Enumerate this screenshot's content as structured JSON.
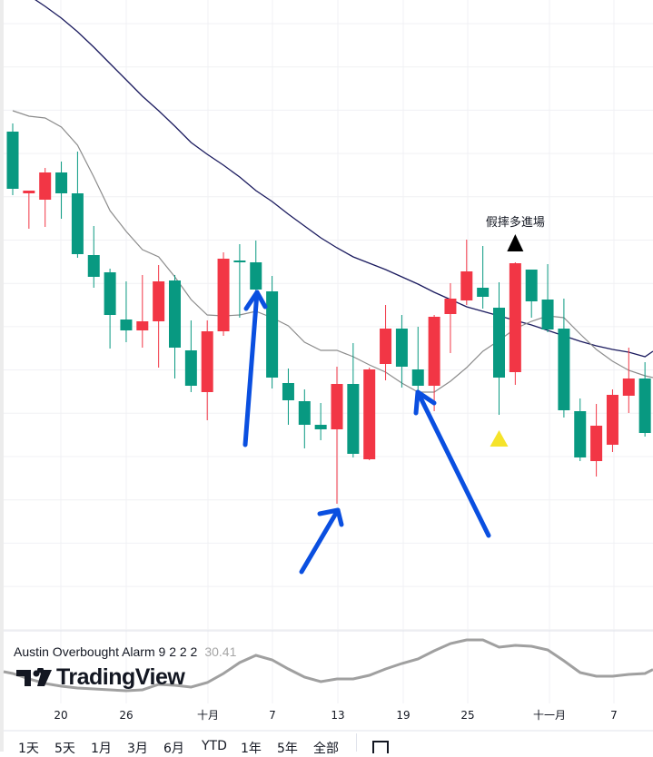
{
  "chart_data": {
    "type": "candlestick",
    "title": "",
    "x_tick_labels": [
      "20",
      "26",
      "十月",
      "7",
      "13",
      "19",
      "25",
      "十一月",
      "7"
    ],
    "candles_ohlc": [
      [
        55.5,
        56.4,
        48.5,
        49.2
      ],
      [
        48.7,
        49.0,
        44.8,
        49.0
      ],
      [
        48.0,
        51.5,
        45.0,
        51.0
      ],
      [
        51.0,
        52.2,
        45.9,
        48.7
      ],
      [
        48.7,
        53.3,
        41.6,
        42.0
      ],
      [
        41.9,
        45.1,
        38.3,
        39.5
      ],
      [
        40.0,
        40.4,
        31.6,
        35.3
      ],
      [
        34.8,
        39.0,
        32.3,
        33.6
      ],
      [
        33.6,
        39.7,
        31.7,
        34.6
      ],
      [
        34.6,
        40.8,
        29.5,
        39.0
      ],
      [
        39.1,
        39.7,
        28.3,
        31.7
      ],
      [
        31.4,
        34.7,
        26.8,
        27.5
      ],
      [
        26.8,
        34.7,
        23.7,
        33.5
      ],
      [
        33.5,
        42.2,
        33.0,
        41.5
      ],
      [
        41.3,
        43.1,
        35.0,
        41.1
      ],
      [
        41.1,
        43.5,
        38.0,
        38.1
      ],
      [
        37.9,
        39.6,
        27.2,
        28.4
      ],
      [
        27.8,
        29.4,
        23.2,
        25.9
      ],
      [
        25.8,
        27.1,
        20.6,
        23.2
      ],
      [
        23.2,
        25.6,
        21.5,
        22.7
      ],
      [
        22.7,
        29.6,
        14.5,
        27.7
      ],
      [
        27.7,
        32.2,
        19.6,
        20.0
      ],
      [
        19.4,
        29.5,
        19.3,
        29.3
      ],
      [
        29.9,
        36.4,
        28.1,
        33.8
      ],
      [
        33.8,
        35.3,
        27.3,
        29.6
      ],
      [
        29.3,
        34.0,
        26.3,
        27.5
      ],
      [
        27.5,
        35.3,
        24.7,
        35.1
      ],
      [
        35.4,
        38.8,
        31.1,
        37.1
      ],
      [
        36.9,
        43.6,
        36.4,
        40.1
      ],
      [
        38.3,
        42.9,
        36.0,
        37.3
      ],
      [
        36.1,
        38.9,
        24.3,
        28.4
      ],
      [
        29.0,
        41.1,
        27.6,
        41.0
      ],
      [
        40.3,
        40.3,
        35.0,
        36.8
      ],
      [
        37.0,
        40.9,
        33.4,
        33.7
      ],
      [
        33.8,
        37.1,
        24.0,
        24.8
      ],
      [
        24.7,
        26.1,
        19.2,
        19.6
      ],
      [
        19.2,
        25.5,
        17.5,
        23.1
      ],
      [
        21.0,
        27.1,
        20.2,
        26.5
      ],
      [
        26.4,
        31.7,
        24.5,
        28.3
      ],
      [
        28.3,
        30.1,
        21.9,
        22.3
      ]
    ],
    "ma_fast": [
      57.8,
      57.2,
      57.0,
      56.0,
      54.0,
      50.5,
      46.8,
      44.5,
      42.5,
      41.7,
      39.5,
      37.0,
      35.3,
      35.2,
      35.3,
      35.7,
      35.0,
      34.1,
      32.3,
      31.4,
      31.4,
      30.7,
      29.8,
      29.0,
      27.8,
      26.8,
      26.8,
      28.0,
      29.5,
      31.3,
      32.5,
      33.8,
      34.6,
      35.2,
      35.0,
      33.2,
      31.5,
      30.2,
      29.2,
      28.6
    ],
    "ma_slow": [
      72,
      70.5,
      69.3,
      68,
      66.5,
      64.8,
      63,
      61.2,
      59.4,
      57.8,
      56.1,
      54.3,
      53,
      51.8,
      50.5,
      49,
      47.8,
      46.4,
      45.1,
      43.8,
      42.7,
      41.7,
      41,
      40.3,
      39.5,
      38.7,
      37.8,
      37,
      36.2,
      35.7,
      35.2,
      34.7,
      34.2,
      33.6,
      33,
      32.4,
      31.9,
      31.5,
      31.2,
      30.7
    ],
    "oscillator": [
      26,
      20,
      15,
      12,
      10,
      9,
      8,
      7,
      8,
      14,
      13,
      11,
      16,
      26,
      38,
      46,
      41,
      31,
      22,
      17,
      20,
      20,
      24,
      31,
      37,
      42,
      51,
      59,
      63,
      63,
      55,
      57,
      56,
      52,
      40,
      27,
      23,
      23,
      25,
      26
    ],
    "signals": [
      {
        "type": "buy-label",
        "candle_index": 31,
        "color": "#000000",
        "label": "假摔多進場"
      },
      {
        "type": "marker-below",
        "candle_index": 30,
        "color": "#f5e32a"
      }
    ],
    "annotations_arrows": 3,
    "grid": true,
    "colors": {
      "up": "#f23645",
      "down": "#089981",
      "ma_fast": "#8c8c8c",
      "ma_slow": "#1a1a5e",
      "oscillator": "#a0a0a0",
      "arrow": "#0a4fe0"
    }
  },
  "indicator": {
    "name": "Austin Overbought Alarm 9 2 2 2",
    "value": "30.41"
  },
  "logo": {
    "text": "TradingView"
  },
  "toolbar": {
    "ranges": [
      "1天",
      "5天",
      "1月",
      "3月",
      "6月",
      "YTD",
      "1年",
      "5年",
      "全部"
    ]
  }
}
